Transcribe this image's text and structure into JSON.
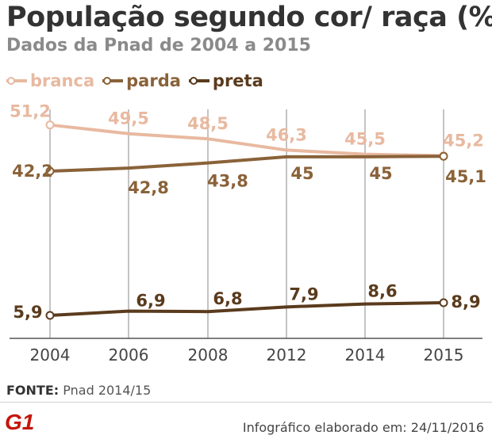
{
  "title": "População segundo cor/ raça (%)",
  "subtitle": "Dados da Pnad de 2004 a 2015",
  "chart_data": {
    "type": "line",
    "categories": [
      "2004",
      "2006",
      "2008",
      "2012",
      "2014",
      "2015"
    ],
    "series": [
      {
        "name": "branca",
        "values": [
          51.2,
          49.5,
          48.5,
          46.3,
          45.5,
          45.2
        ],
        "labels": [
          "51,2",
          "49,5",
          "48,5",
          "46,3",
          "45,5",
          "45,2"
        ],
        "color": "#e8b9a0"
      },
      {
        "name": "parda",
        "values": [
          42.2,
          42.8,
          43.8,
          45,
          45,
          45.1
        ],
        "labels": [
          "42,2",
          "42,8",
          "43,8",
          "45",
          "45",
          "45,1"
        ],
        "color": "#8a6239"
      },
      {
        "name": "preta",
        "values": [
          5.9,
          6.9,
          6.8,
          7.9,
          8.6,
          8.9
        ],
        "labels": [
          "5,9",
          "6,9",
          "6,8",
          "7,9",
          "8,6",
          "8,9"
        ],
        "color": "#5a3b1d"
      }
    ],
    "grid": "vertical",
    "legend": "top-left"
  },
  "source_label": "FONTE:",
  "source_text": "Pnad 2014/15",
  "logo_text": "G1",
  "credit": "Infográfico elaborado em: 24/11/2016",
  "colors": {
    "title": "#333333",
    "subtitle": "#8a8a8a",
    "logo": "#c4170c",
    "grid": "#888888"
  }
}
